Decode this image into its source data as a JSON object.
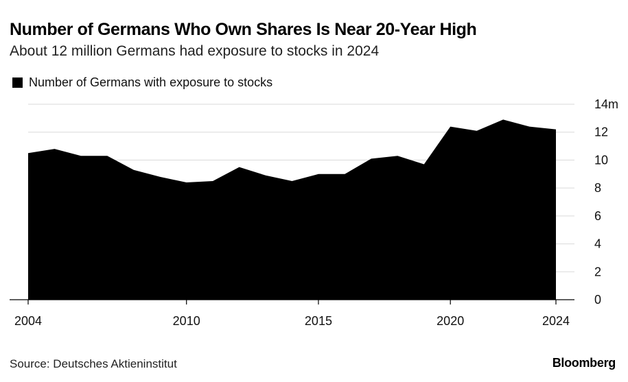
{
  "chart_data": {
    "type": "area",
    "title": "Number of Germans Who Own Shares Is Near 20-Year High",
    "subtitle": "About 12 million Germans had exposure to stocks in 2024",
    "legend": [
      {
        "label": "Number of Germans with exposure to stocks",
        "color": "#000000"
      }
    ],
    "legend_position": "top-left",
    "xlabel": "",
    "ylabel": "",
    "x": [
      2004,
      2005,
      2006,
      2007,
      2008,
      2009,
      2010,
      2011,
      2012,
      2013,
      2014,
      2015,
      2016,
      2017,
      2018,
      2019,
      2020,
      2021,
      2022,
      2023,
      2024
    ],
    "series": [
      {
        "name": "Number of Germans with exposure to stocks",
        "values": [
          10.5,
          10.8,
          10.3,
          10.3,
          9.3,
          8.8,
          8.4,
          8.5,
          9.5,
          8.9,
          8.5,
          9.0,
          9.0,
          10.1,
          10.3,
          9.7,
          12.4,
          12.1,
          12.9,
          12.4,
          12.2
        ]
      }
    ],
    "xticks": [
      2004,
      2010,
      2015,
      2020,
      2024
    ],
    "xtick_labels": [
      "2004",
      "2010",
      "2015",
      "2020",
      "2024"
    ],
    "yticks": [
      0,
      2,
      4,
      6,
      8,
      10,
      12,
      14
    ],
    "ytick_labels": [
      "0",
      "2",
      "4",
      "6",
      "8",
      "10",
      "12",
      "14m"
    ],
    "xlim": [
      2004,
      2024
    ],
    "ylim": [
      0,
      14
    ],
    "grid": true,
    "color": "#000000",
    "grid_color": "#d9d9d9"
  },
  "footer": {
    "source": "Source: Deutsches Aktieninstitut",
    "brand": "Bloomberg"
  }
}
